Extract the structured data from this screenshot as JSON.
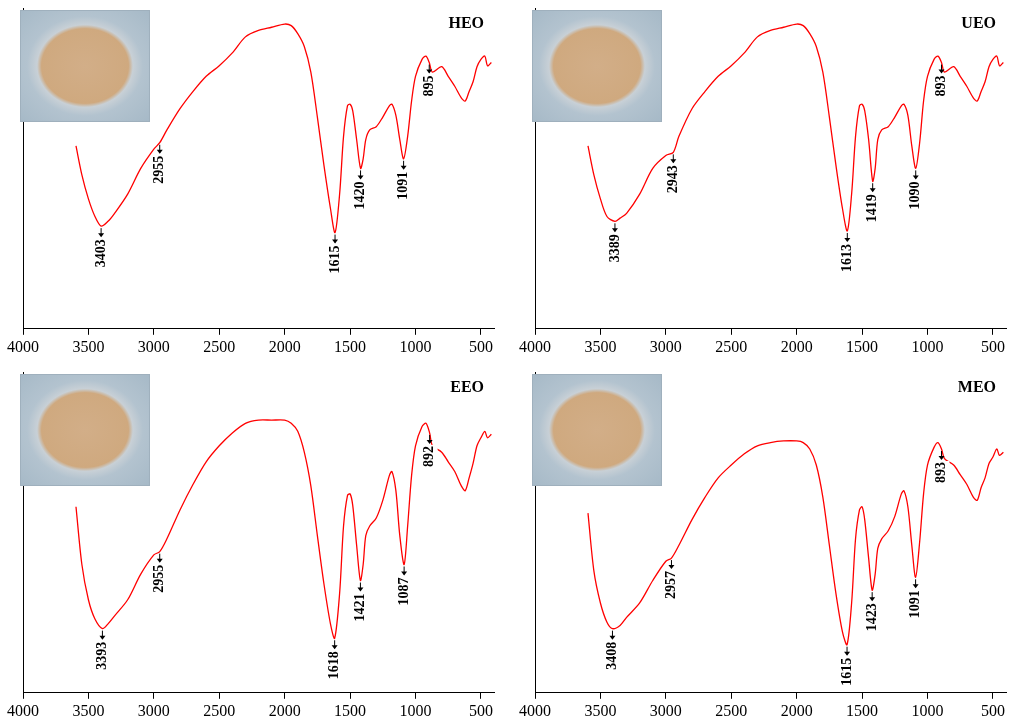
{
  "chart_data": [
    {
      "type": "line",
      "title": "HEO",
      "color": "#ff0000",
      "grid": false,
      "tick_labels": "x",
      "xlim": [
        4000,
        400
      ],
      "xticks": [
        4000,
        3500,
        3000,
        2500,
        2000,
        1500,
        1000,
        500
      ],
      "ylim": [
        0,
        100
      ],
      "x": [
        3595,
        3550,
        3500,
        3450,
        3403,
        3350,
        3300,
        3200,
        3100,
        3000,
        2955,
        2900,
        2800,
        2700,
        2600,
        2500,
        2400,
        2300,
        2200,
        2100,
        2000,
        1950,
        1900,
        1850,
        1800,
        1750,
        1700,
        1650,
        1615,
        1580,
        1550,
        1520,
        1500,
        1480,
        1450,
        1420,
        1400,
        1380,
        1350,
        1300,
        1250,
        1200,
        1180,
        1150,
        1120,
        1091,
        1060,
        1030,
        1000,
        950,
        920,
        895,
        870,
        800,
        750,
        700,
        650,
        620,
        590,
        560,
        530,
        500,
        470,
        450,
        420
      ],
      "values": [
        57,
        48,
        40.5,
        35,
        32,
        33.5,
        36,
        42,
        50,
        56,
        58,
        62,
        68.6,
        74,
        78.7,
        82,
        86,
        91,
        93,
        94,
        95,
        94.5,
        92,
        88,
        80,
        66,
        51,
        37.5,
        30,
        42,
        60,
        69.5,
        70,
        68,
        59,
        50,
        53,
        59,
        62,
        63,
        66,
        69.5,
        70,
        66.5,
        59,
        53,
        60,
        71,
        78.7,
        84,
        85,
        83,
        80,
        81.7,
        78.7,
        75.6,
        72,
        71,
        74,
        77,
        81.7,
        84,
        85,
        82,
        83
      ],
      "annotations": [
        {
          "x": 3403,
          "text": "3403"
        },
        {
          "x": 2955,
          "text": "2955"
        },
        {
          "x": 1615,
          "text": "1615"
        },
        {
          "x": 1420,
          "text": "1420"
        },
        {
          "x": 1091,
          "text": "1091"
        },
        {
          "x": 895,
          "text": "895"
        }
      ]
    },
    {
      "type": "line",
      "title": "UEO",
      "color": "#ff0000",
      "grid": false,
      "tick_labels": "x",
      "xlim": [
        4000,
        400
      ],
      "xticks": [
        4000,
        3500,
        3000,
        2500,
        2000,
        1500,
        1000,
        500
      ],
      "ylim": [
        0,
        100
      ],
      "x": [
        3595,
        3550,
        3500,
        3450,
        3389,
        3350,
        3300,
        3200,
        3100,
        3000,
        2943,
        2900,
        2800,
        2700,
        2600,
        2500,
        2400,
        2300,
        2200,
        2100,
        2000,
        1950,
        1900,
        1850,
        1800,
        1750,
        1700,
        1650,
        1613,
        1580,
        1550,
        1520,
        1500,
        1480,
        1450,
        1419,
        1400,
        1380,
        1350,
        1300,
        1250,
        1200,
        1180,
        1150,
        1120,
        1090,
        1060,
        1030,
        1000,
        950,
        920,
        893,
        870,
        800,
        750,
        700,
        650,
        620,
        590,
        560,
        530,
        500,
        470,
        450,
        420
      ],
      "values": [
        57,
        48,
        40.5,
        35,
        33.5,
        34.5,
        36,
        42,
        50,
        54,
        55,
        60,
        68.6,
        74,
        78.7,
        82,
        86,
        91,
        93,
        94,
        95,
        94.5,
        92,
        88,
        80,
        66,
        51,
        37.5,
        30.5,
        42,
        60,
        69.5,
        70,
        68,
        59,
        46,
        50,
        59,
        62,
        63,
        66,
        69.5,
        70,
        66.5,
        57,
        50,
        58,
        71,
        78.7,
        84,
        85,
        83,
        80,
        81.7,
        78.7,
        75.6,
        72,
        71,
        74,
        77,
        81.7,
        84,
        85,
        82,
        83
      ],
      "annotations": [
        {
          "x": 3389,
          "text": "3389"
        },
        {
          "x": 2943,
          "text": "2943"
        },
        {
          "x": 1613,
          "text": "1613"
        },
        {
          "x": 1419,
          "text": "1419"
        },
        {
          "x": 1090,
          "text": "1090"
        },
        {
          "x": 893,
          "text": "893"
        }
      ]
    },
    {
      "type": "line",
      "title": "EEO",
      "color": "#ff0000",
      "grid": false,
      "tick_labels": "x",
      "xlim": [
        4000,
        400
      ],
      "xticks": [
        4000,
        3500,
        3000,
        2500,
        2000,
        1500,
        1000,
        500
      ],
      "ylim": [
        0,
        100
      ],
      "x": [
        3595,
        3550,
        3500,
        3450,
        3393,
        3350,
        3300,
        3200,
        3100,
        3000,
        2955,
        2900,
        2800,
        2700,
        2600,
        2500,
        2400,
        2300,
        2200,
        2100,
        2000,
        1950,
        1900,
        1850,
        1800,
        1750,
        1700,
        1650,
        1618,
        1580,
        1550,
        1520,
        1500,
        1480,
        1450,
        1421,
        1400,
        1380,
        1350,
        1300,
        1250,
        1200,
        1180,
        1150,
        1120,
        1087,
        1060,
        1030,
        1000,
        950,
        920,
        892,
        870,
        800,
        750,
        700,
        650,
        620,
        590,
        560,
        530,
        500,
        470,
        450,
        420
      ],
      "values": [
        58,
        40,
        29,
        23,
        20,
        21.5,
        24,
        29,
        37,
        43,
        44,
        48,
        57,
        65,
        72,
        77,
        81,
        84,
        85,
        85,
        85,
        84,
        81.5,
        75,
        64.5,
        49,
        34,
        21.5,
        17,
        31,
        52,
        61.5,
        62,
        58.5,
        46,
        35,
        40,
        49,
        52,
        54.5,
        60,
        67.7,
        69,
        63,
        49,
        40,
        52,
        67.7,
        77,
        83,
        84,
        81,
        77,
        75,
        72,
        69,
        64.5,
        63,
        67,
        71.5,
        77,
        79.5,
        81.5,
        79.5,
        80.6
      ],
      "annotations": [
        {
          "x": 3393,
          "text": "3393"
        },
        {
          "x": 2955,
          "text": "2955"
        },
        {
          "x": 1618,
          "text": "1618"
        },
        {
          "x": 1421,
          "text": "1421"
        },
        {
          "x": 1087,
          "text": "1087"
        },
        {
          "x": 892,
          "text": "892"
        }
      ]
    },
    {
      "type": "line",
      "title": "MEO",
      "color": "#ff0000",
      "grid": false,
      "tick_labels": "x",
      "xlim": [
        4000,
        400
      ],
      "xticks": [
        4000,
        3500,
        3000,
        2500,
        2000,
        1500,
        1000,
        500
      ],
      "ylim": [
        0,
        100
      ],
      "x": [
        3595,
        3550,
        3500,
        3450,
        3408,
        3350,
        3300,
        3200,
        3100,
        3000,
        2957,
        2900,
        2800,
        2700,
        2600,
        2500,
        2400,
        2300,
        2200,
        2100,
        2000,
        1950,
        1900,
        1850,
        1800,
        1750,
        1700,
        1650,
        1615,
        1580,
        1550,
        1520,
        1500,
        1480,
        1450,
        1423,
        1400,
        1380,
        1350,
        1300,
        1250,
        1200,
        1180,
        1150,
        1120,
        1091,
        1060,
        1030,
        1000,
        950,
        920,
        893,
        870,
        800,
        750,
        700,
        650,
        620,
        590,
        560,
        530,
        500,
        470,
        450,
        420
      ],
      "values": [
        56,
        38,
        28,
        22,
        20,
        21,
        23.5,
        28,
        35,
        41,
        42,
        46,
        54,
        61,
        67,
        71,
        74.5,
        77,
        78,
        78.5,
        78.5,
        78,
        76,
        71,
        61,
        46,
        31,
        19,
        15,
        28,
        48,
        57,
        58,
        54,
        42,
        32,
        37,
        45,
        48,
        50.5,
        55,
        62,
        63,
        58,
        46,
        36,
        47,
        62,
        71,
        76.5,
        78,
        76,
        73,
        71,
        68,
        65,
        61,
        60,
        64,
        67,
        71.5,
        73.5,
        76,
        74,
        75
      ],
      "annotations": [
        {
          "x": 3408,
          "text": "3408"
        },
        {
          "x": 2957,
          "text": "2957"
        },
        {
          "x": 1615,
          "text": "1615"
        },
        {
          "x": 1423,
          "text": "1423"
        },
        {
          "x": 1091,
          "text": "1091"
        },
        {
          "x": 893,
          "text": "893"
        }
      ]
    }
  ]
}
